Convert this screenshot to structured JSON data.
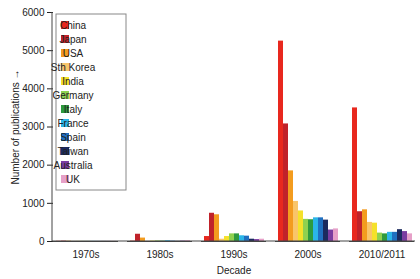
{
  "chart_data": {
    "type": "bar",
    "x_label": "Decade",
    "y_label": "Number of publications",
    "categories": [
      "1970s",
      "1980s",
      "1990s",
      "2000s",
      "2010/2011"
    ],
    "series": [
      {
        "name": "China",
        "color": "#e8281e",
        "values": [
          5,
          10,
          130,
          5250,
          3500
        ]
      },
      {
        "name": "Japan",
        "color": "#c0222a",
        "values": [
          10,
          190,
          740,
          3080,
          780
        ]
      },
      {
        "name": "USA",
        "color": "#f39c1f",
        "values": [
          8,
          90,
          700,
          1850,
          830
        ]
      },
      {
        "name": "Sth Korea",
        "color": "#f9c56a",
        "values": [
          2,
          5,
          60,
          1050,
          500
        ]
      },
      {
        "name": "India",
        "color": "#f5e12a",
        "values": [
          3,
          10,
          130,
          800,
          480
        ]
      },
      {
        "name": "Germany",
        "color": "#8fd14f",
        "values": [
          3,
          15,
          200,
          580,
          220
        ]
      },
      {
        "name": "Italy",
        "color": "#2e9a3e",
        "values": [
          2,
          10,
          200,
          570,
          200
        ]
      },
      {
        "name": "France",
        "color": "#2bb5e8",
        "values": [
          3,
          20,
          150,
          620,
          240
        ]
      },
      {
        "name": "Spain",
        "color": "#1f6fc0",
        "values": [
          2,
          10,
          140,
          620,
          240
        ]
      },
      {
        "name": "Taiwan",
        "color": "#1b2a5e",
        "values": [
          2,
          5,
          60,
          560,
          310
        ]
      },
      {
        "name": "Australia",
        "color": "#7a3ca0",
        "values": [
          2,
          10,
          50,
          300,
          260
        ]
      },
      {
        "name": "UK",
        "color": "#e6a0c8",
        "values": [
          3,
          20,
          60,
          330,
          200
        ]
      }
    ],
    "ylim": [
      0,
      6000
    ],
    "yticks": [
      0,
      1000,
      2000,
      3000,
      4000,
      5000,
      6000
    ],
    "grid": false,
    "legend": "upper left"
  }
}
